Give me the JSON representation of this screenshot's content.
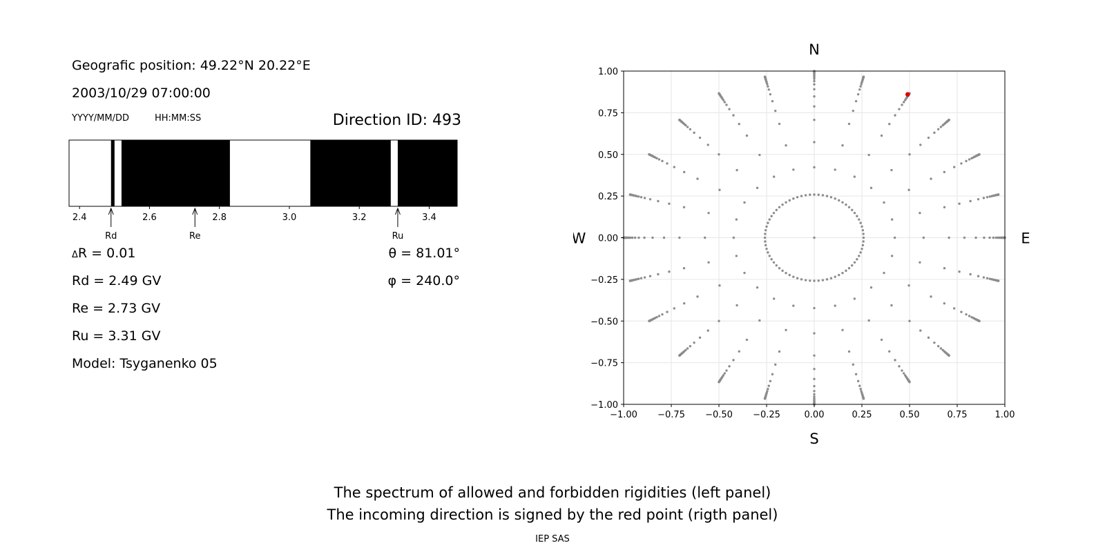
{
  "info": {
    "geo_position": "Geografic position: 49.22°N 20.22°E",
    "datetime": "2003/10/29 07:00:00",
    "date_format": "YYYY/MM/DD",
    "time_format": "HH:MM:SS",
    "direction_id": "Direction ID: 493"
  },
  "results": {
    "delta_r_symbol": "Δ",
    "delta_r": "R = 0.01",
    "rd": "Rd = 2.49 GV",
    "re": "Re = 2.73 GV",
    "ru": "Ru = 3.31 GV",
    "model": "Model: Tsyganenko 05",
    "theta_symbol": "θ",
    "theta": "= 81.01°",
    "phi_symbol": "φ",
    "phi": "= 240.0°"
  },
  "compass": {
    "north": "N",
    "south": "S",
    "west": "W",
    "east": "E"
  },
  "caption": {
    "line1": "The spectrum of allowed and forbidden rigidities (left panel)",
    "line2": "The incoming direction is signed by the red point (rigth panel)",
    "credit": "IEP SAS"
  },
  "chart_data": [
    {
      "type": "rigidity_spectrum",
      "xlim": [
        2.37,
        3.48
      ],
      "ticks": [
        2.4,
        2.6,
        2.8,
        3.0,
        3.2,
        3.4
      ],
      "tick_labels": [
        "2.4",
        "2.6",
        "2.8",
        "3.0",
        "3.2",
        "3.4"
      ],
      "forbidden_bands": [
        [
          2.49,
          2.5
        ],
        [
          2.52,
          2.83
        ],
        [
          3.06,
          3.29
        ],
        [
          3.31,
          3.48
        ]
      ],
      "markers": [
        {
          "label": "Rd",
          "value": 2.49
        },
        {
          "label": "Re",
          "value": 2.73
        },
        {
          "label": "Ru",
          "value": 3.31
        }
      ],
      "colors": {
        "forbidden": "#000000",
        "allowed": "#ffffff"
      }
    },
    {
      "type": "scatter",
      "xlim": [
        -1.0,
        1.0
      ],
      "ylim": [
        -1.0,
        1.0
      ],
      "xticks": [
        -1.0,
        -0.75,
        -0.5,
        -0.25,
        0.0,
        0.25,
        0.5,
        0.75,
        1.0
      ],
      "yticks": [
        -1.0,
        -0.75,
        -0.5,
        -0.25,
        0.0,
        0.25,
        0.5,
        0.75,
        1.0
      ],
      "xtick_labels": [
        "−1.00",
        "−0.75",
        "−0.50",
        "−0.25",
        "0.00",
        "0.25",
        "0.50",
        "0.75",
        "1.00"
      ],
      "ytick_labels": [
        "−1.00",
        "−0.75",
        "−0.50",
        "−0.25",
        "0.00",
        "0.25",
        "0.50",
        "0.75",
        "1.00"
      ],
      "grid": true,
      "directions": {
        "zenith_angles_deg": [
          0,
          15,
          25,
          35,
          45,
          52,
          58,
          63,
          67,
          70,
          72.5,
          74.5,
          76,
          77.5,
          79,
          80,
          81,
          82,
          83,
          84,
          85,
          86,
          87,
          88,
          89,
          90
        ],
        "azimuth_step_deg": 15,
        "inner_ring_azimuth_step_deg": 5,
        "inner_ring_zenith_deg": 15,
        "color": "#8c8c8c"
      },
      "highlight": {
        "x": 0.49,
        "y": 0.86,
        "color": "#e00000"
      }
    }
  ]
}
